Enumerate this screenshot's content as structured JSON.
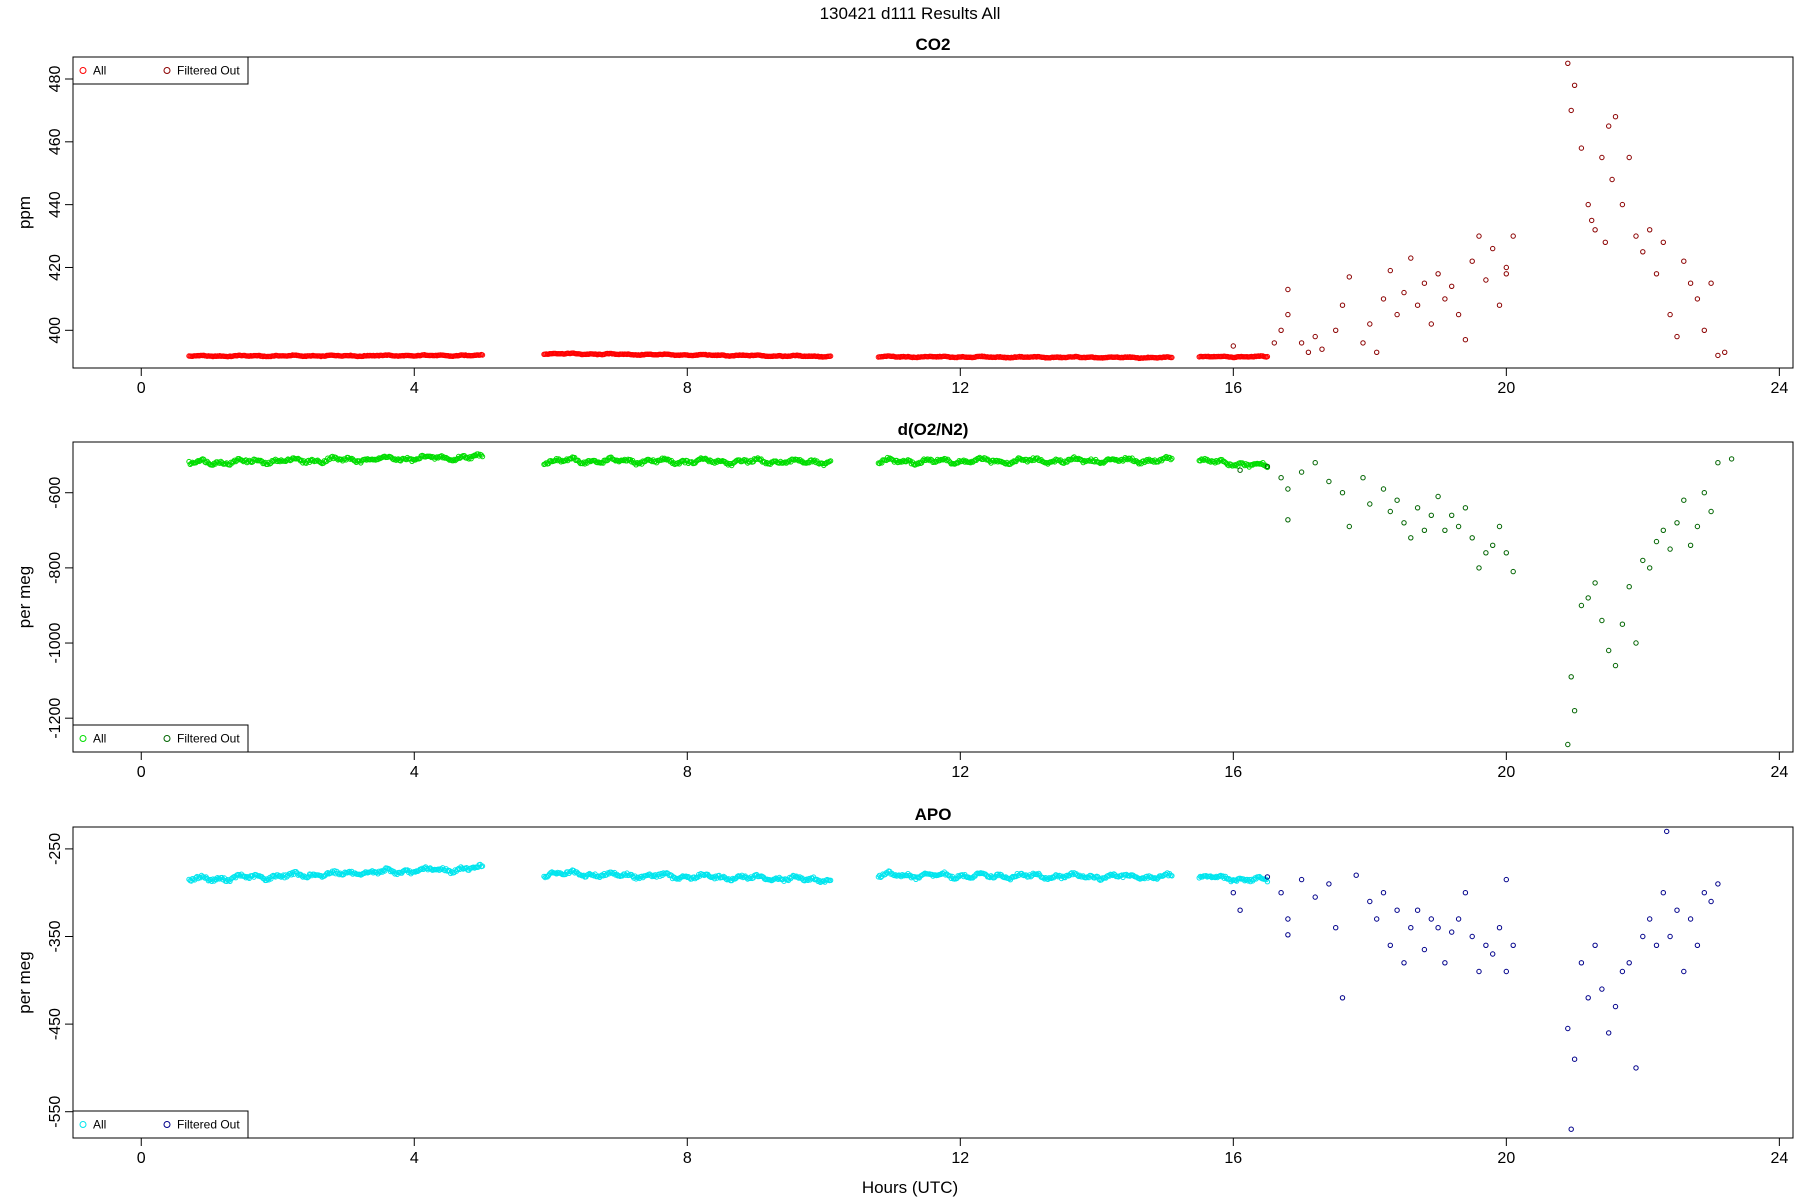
{
  "figure": {
    "title": "130421   d111   Results All",
    "xlabel": "Hours (UTC)"
  },
  "chart_data": [
    {
      "type": "scatter",
      "title": "CO2",
      "ylabel": "ppm",
      "xlim": [
        -1,
        24.2
      ],
      "ylim": [
        388,
        487
      ],
      "xticks": [
        0,
        4,
        8,
        12,
        16,
        20,
        24
      ],
      "yticks": [
        400,
        420,
        440,
        460,
        480
      ],
      "legend_position": "top-left",
      "series": [
        {
          "name": "All",
          "color": "#ff0000",
          "segments": [
            {
              "x": [
                0.7,
                5.0
              ],
              "y": [
                391.8,
                392.0
              ]
            },
            {
              "x": [
                5.9,
                10.1
              ],
              "y": [
                392.6,
                391.7
              ]
            },
            {
              "x": [
                10.8,
                15.1
              ],
              "y": [
                391.6,
                391.3
              ]
            },
            {
              "x": [
                15.5,
                16.5
              ],
              "y": [
                391.6,
                391.6
              ]
            }
          ]
        },
        {
          "name": "Filtered Out",
          "color": "#8b0000",
          "points": [
            [
              16.0,
              395
            ],
            [
              16.6,
              396
            ],
            [
              16.7,
              400
            ],
            [
              16.8,
              405
            ],
            [
              16.8,
              413
            ],
            [
              17.0,
              396
            ],
            [
              17.1,
              393
            ],
            [
              17.2,
              398
            ],
            [
              17.3,
              394
            ],
            [
              17.5,
              400
            ],
            [
              17.6,
              408
            ],
            [
              17.7,
              417
            ],
            [
              17.9,
              396
            ],
            [
              18.0,
              402
            ],
            [
              18.1,
              393
            ],
            [
              18.2,
              410
            ],
            [
              18.3,
              419
            ],
            [
              18.4,
              405
            ],
            [
              18.5,
              412
            ],
            [
              18.6,
              423
            ],
            [
              18.7,
              408
            ],
            [
              18.8,
              415
            ],
            [
              18.9,
              402
            ],
            [
              19.0,
              418
            ],
            [
              19.1,
              410
            ],
            [
              19.2,
              414
            ],
            [
              19.3,
              405
            ],
            [
              19.4,
              397
            ],
            [
              19.5,
              422
            ],
            [
              19.6,
              430
            ],
            [
              19.7,
              416
            ],
            [
              19.8,
              426
            ],
            [
              19.9,
              408
            ],
            [
              20.0,
              420
            ],
            [
              20.1,
              430
            ],
            [
              20.0,
              418
            ],
            [
              20.9,
              485
            ],
            [
              20.95,
              470
            ],
            [
              21.0,
              478
            ],
            [
              21.1,
              458
            ],
            [
              21.2,
              440
            ],
            [
              21.25,
              435
            ],
            [
              21.3,
              432
            ],
            [
              21.4,
              455
            ],
            [
              21.45,
              428
            ],
            [
              21.5,
              465
            ],
            [
              21.55,
              448
            ],
            [
              21.6,
              468
            ],
            [
              21.7,
              440
            ],
            [
              21.8,
              455
            ],
            [
              21.9,
              430
            ],
            [
              22.0,
              425
            ],
            [
              22.1,
              432
            ],
            [
              22.2,
              418
            ],
            [
              22.3,
              428
            ],
            [
              22.4,
              405
            ],
            [
              22.5,
              398
            ],
            [
              22.6,
              422
            ],
            [
              22.7,
              415
            ],
            [
              22.8,
              410
            ],
            [
              22.9,
              400
            ],
            [
              23.0,
              415
            ],
            [
              23.1,
              392
            ],
            [
              23.2,
              393
            ]
          ]
        }
      ]
    },
    {
      "type": "scatter",
      "title": "d(O2/N2)",
      "ylabel": "per meg",
      "xlim": [
        -1,
        24.2
      ],
      "ylim": [
        -1290,
        -465
      ],
      "xticks": [
        0,
        4,
        8,
        12,
        16,
        20,
        24
      ],
      "yticks": [
        -600,
        -800,
        -1000,
        -1200
      ],
      "legend_position": "bottom-left",
      "series": [
        {
          "name": "All",
          "color": "#00dd00",
          "segments": [
            {
              "x": [
                0.7,
                5.0
              ],
              "y": [
                -520,
                -505
              ]
            },
            {
              "x": [
                5.9,
                10.1
              ],
              "y": [
                -515,
                -518
              ]
            },
            {
              "x": [
                10.8,
                15.1
              ],
              "y": [
                -517,
                -513
              ]
            },
            {
              "x": [
                15.5,
                16.5
              ],
              "y": [
                -515,
                -530
              ]
            }
          ]
        },
        {
          "name": "Filtered Out",
          "color": "#006400",
          "points": [
            [
              16.1,
              -540
            ],
            [
              16.5,
              -530
            ],
            [
              16.7,
              -560
            ],
            [
              16.8,
              -590
            ],
            [
              16.8,
              -672
            ],
            [
              17.0,
              -545
            ],
            [
              17.2,
              -520
            ],
            [
              17.4,
              -570
            ],
            [
              17.6,
              -600
            ],
            [
              17.7,
              -690
            ],
            [
              17.9,
              -560
            ],
            [
              18.0,
              -630
            ],
            [
              18.2,
              -590
            ],
            [
              18.3,
              -650
            ],
            [
              18.4,
              -620
            ],
            [
              18.5,
              -680
            ],
            [
              18.6,
              -720
            ],
            [
              18.7,
              -640
            ],
            [
              18.8,
              -700
            ],
            [
              18.9,
              -660
            ],
            [
              19.0,
              -610
            ],
            [
              19.1,
              -700
            ],
            [
              19.2,
              -660
            ],
            [
              19.3,
              -690
            ],
            [
              19.4,
              -640
            ],
            [
              19.5,
              -720
            ],
            [
              19.6,
              -800
            ],
            [
              19.7,
              -760
            ],
            [
              19.8,
              -740
            ],
            [
              19.9,
              -690
            ],
            [
              20.0,
              -760
            ],
            [
              20.1,
              -810
            ],
            [
              20.9,
              -1270
            ],
            [
              20.95,
              -1090
            ],
            [
              21.0,
              -1180
            ],
            [
              21.1,
              -900
            ],
            [
              21.2,
              -880
            ],
            [
              21.3,
              -840
            ],
            [
              21.4,
              -940
            ],
            [
              21.5,
              -1020
            ],
            [
              21.6,
              -1060
            ],
            [
              21.7,
              -950
            ],
            [
              21.8,
              -850
            ],
            [
              21.9,
              -1000
            ],
            [
              22.0,
              -780
            ],
            [
              22.1,
              -800
            ],
            [
              22.2,
              -730
            ],
            [
              22.3,
              -700
            ],
            [
              22.4,
              -750
            ],
            [
              22.5,
              -680
            ],
            [
              22.6,
              -620
            ],
            [
              22.7,
              -740
            ],
            [
              22.8,
              -690
            ],
            [
              22.9,
              -600
            ],
            [
              23.0,
              -650
            ],
            [
              23.1,
              -520
            ],
            [
              23.3,
              -510
            ]
          ]
        }
      ]
    },
    {
      "type": "scatter",
      "title": "APO",
      "ylabel": "per meg",
      "xlim": [
        -1,
        24.2
      ],
      "ylim": [
        -580,
        -225
      ],
      "xticks": [
        0,
        4,
        8,
        12,
        16,
        20,
        24
      ],
      "yticks": [
        -250,
        -350,
        -450,
        -550
      ],
      "legend_position": "bottom-left",
      "series": [
        {
          "name": "All",
          "color": "#00e5ee",
          "segments": [
            {
              "x": [
                0.7,
                5.0
              ],
              "y": [
                -285,
                -272
              ]
            },
            {
              "x": [
                5.9,
                10.1
              ],
              "y": [
                -278,
                -285
              ]
            },
            {
              "x": [
                10.8,
                15.1
              ],
              "y": [
                -280,
                -282
              ]
            },
            {
              "x": [
                15.5,
                16.5
              ],
              "y": [
                -282,
                -286
              ]
            }
          ]
        },
        {
          "name": "Filtered Out",
          "color": "#00008b",
          "points": [
            [
              16.0,
              -300
            ],
            [
              16.1,
              -320
            ],
            [
              16.5,
              -282
            ],
            [
              16.7,
              -300
            ],
            [
              16.8,
              -330
            ],
            [
              16.8,
              -348
            ],
            [
              17.0,
              -285
            ],
            [
              17.2,
              -305
            ],
            [
              17.4,
              -290
            ],
            [
              17.5,
              -340
            ],
            [
              17.6,
              -420
            ],
            [
              17.8,
              -280
            ],
            [
              18.0,
              -310
            ],
            [
              18.1,
              -330
            ],
            [
              18.2,
              -300
            ],
            [
              18.3,
              -360
            ],
            [
              18.4,
              -320
            ],
            [
              18.5,
              -380
            ],
            [
              18.6,
              -340
            ],
            [
              18.7,
              -320
            ],
            [
              18.8,
              -365
            ],
            [
              18.9,
              -330
            ],
            [
              19.0,
              -340
            ],
            [
              19.1,
              -380
            ],
            [
              19.2,
              -345
            ],
            [
              19.3,
              -330
            ],
            [
              19.4,
              -300
            ],
            [
              19.5,
              -350
            ],
            [
              19.6,
              -390
            ],
            [
              19.7,
              -360
            ],
            [
              19.8,
              -370
            ],
            [
              19.9,
              -340
            ],
            [
              20.0,
              -390
            ],
            [
              20.1,
              -360
            ],
            [
              20.0,
              -285
            ],
            [
              20.9,
              -455
            ],
            [
              20.95,
              -570
            ],
            [
              21.0,
              -490
            ],
            [
              21.1,
              -380
            ],
            [
              21.2,
              -420
            ],
            [
              21.3,
              -360
            ],
            [
              21.4,
              -410
            ],
            [
              21.5,
              -460
            ],
            [
              21.6,
              -430
            ],
            [
              21.7,
              -390
            ],
            [
              21.8,
              -380
            ],
            [
              21.9,
              -500
            ],
            [
              22.0,
              -350
            ],
            [
              22.1,
              -330
            ],
            [
              22.2,
              -360
            ],
            [
              22.3,
              -300
            ],
            [
              22.4,
              -350
            ],
            [
              22.5,
              -320
            ],
            [
              22.6,
              -390
            ],
            [
              22.7,
              -330
            ],
            [
              22.8,
              -360
            ],
            [
              22.9,
              -300
            ],
            [
              23.0,
              -310
            ],
            [
              23.1,
              -290
            ],
            [
              22.35,
              -230
            ]
          ]
        }
      ]
    }
  ]
}
